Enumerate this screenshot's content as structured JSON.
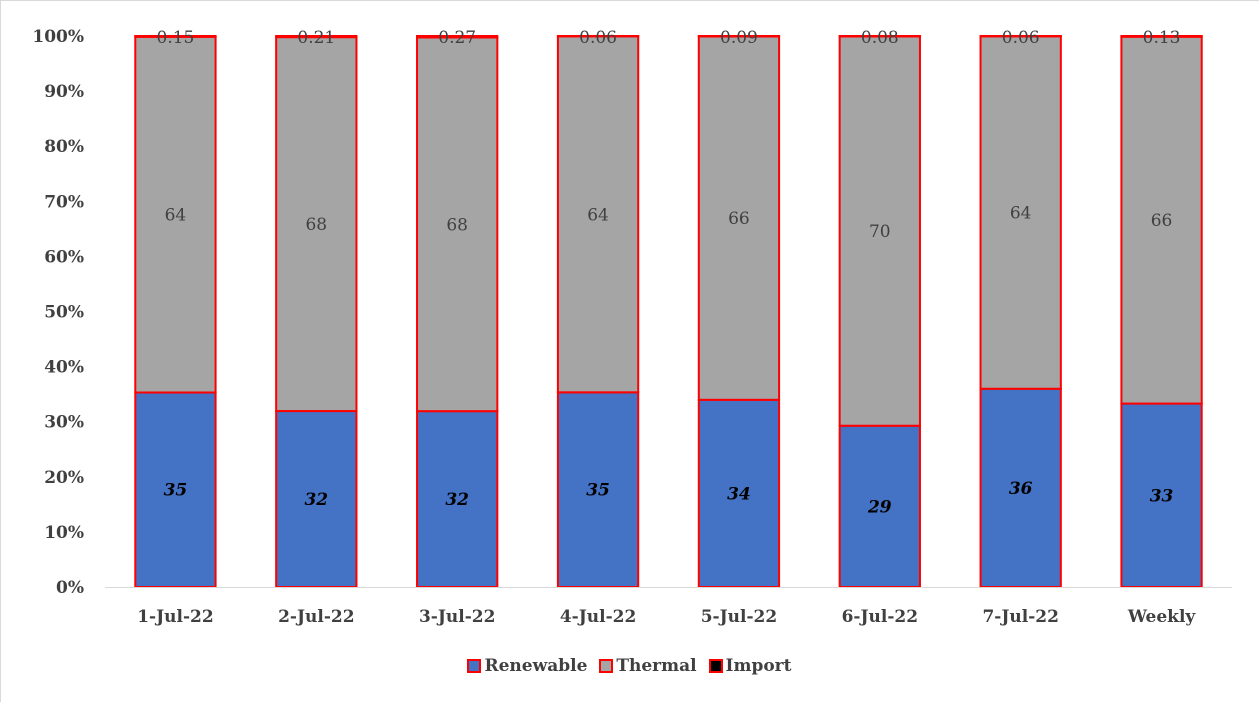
{
  "chart_data": {
    "type": "bar",
    "stacked": true,
    "categories": [
      "1-Jul-22",
      "2-Jul-22",
      "3-Jul-22",
      "4-Jul-22",
      "5-Jul-22",
      "6-Jul-22",
      "7-Jul-22",
      "Weekly"
    ],
    "series": [
      {
        "name": "Renewable",
        "color": "#4472c4",
        "values": [
          35,
          32,
          32,
          35,
          34,
          29,
          36,
          33
        ],
        "labels": [
          "35",
          "32",
          "32",
          "35",
          "34",
          "29",
          "36",
          "33"
        ]
      },
      {
        "name": "Thermal",
        "color": "#a5a5a5",
        "values": [
          64,
          68,
          68,
          64,
          66,
          70,
          64,
          66
        ],
        "labels": [
          "64",
          "68",
          "68",
          "64",
          "66",
          "70",
          "64",
          "66"
        ]
      },
      {
        "name": "Import",
        "color": "#000000",
        "values": [
          0.15,
          0.21,
          0.27,
          0.06,
          0.09,
          0.08,
          0.06,
          0.13
        ],
        "labels": [
          "0.15",
          "0.21",
          "0.27",
          "0.06",
          "0.09",
          "0.08",
          "0.06",
          "0.13"
        ]
      }
    ],
    "bar_border_color": "#ff0000",
    "y_ticks": [
      "0%",
      "10%",
      "20%",
      "30%",
      "40%",
      "50%",
      "60%",
      "70%",
      "80%",
      "90%",
      "100%"
    ],
    "ylim": [
      0,
      100
    ],
    "grid": false,
    "legend_position": "bottom"
  }
}
